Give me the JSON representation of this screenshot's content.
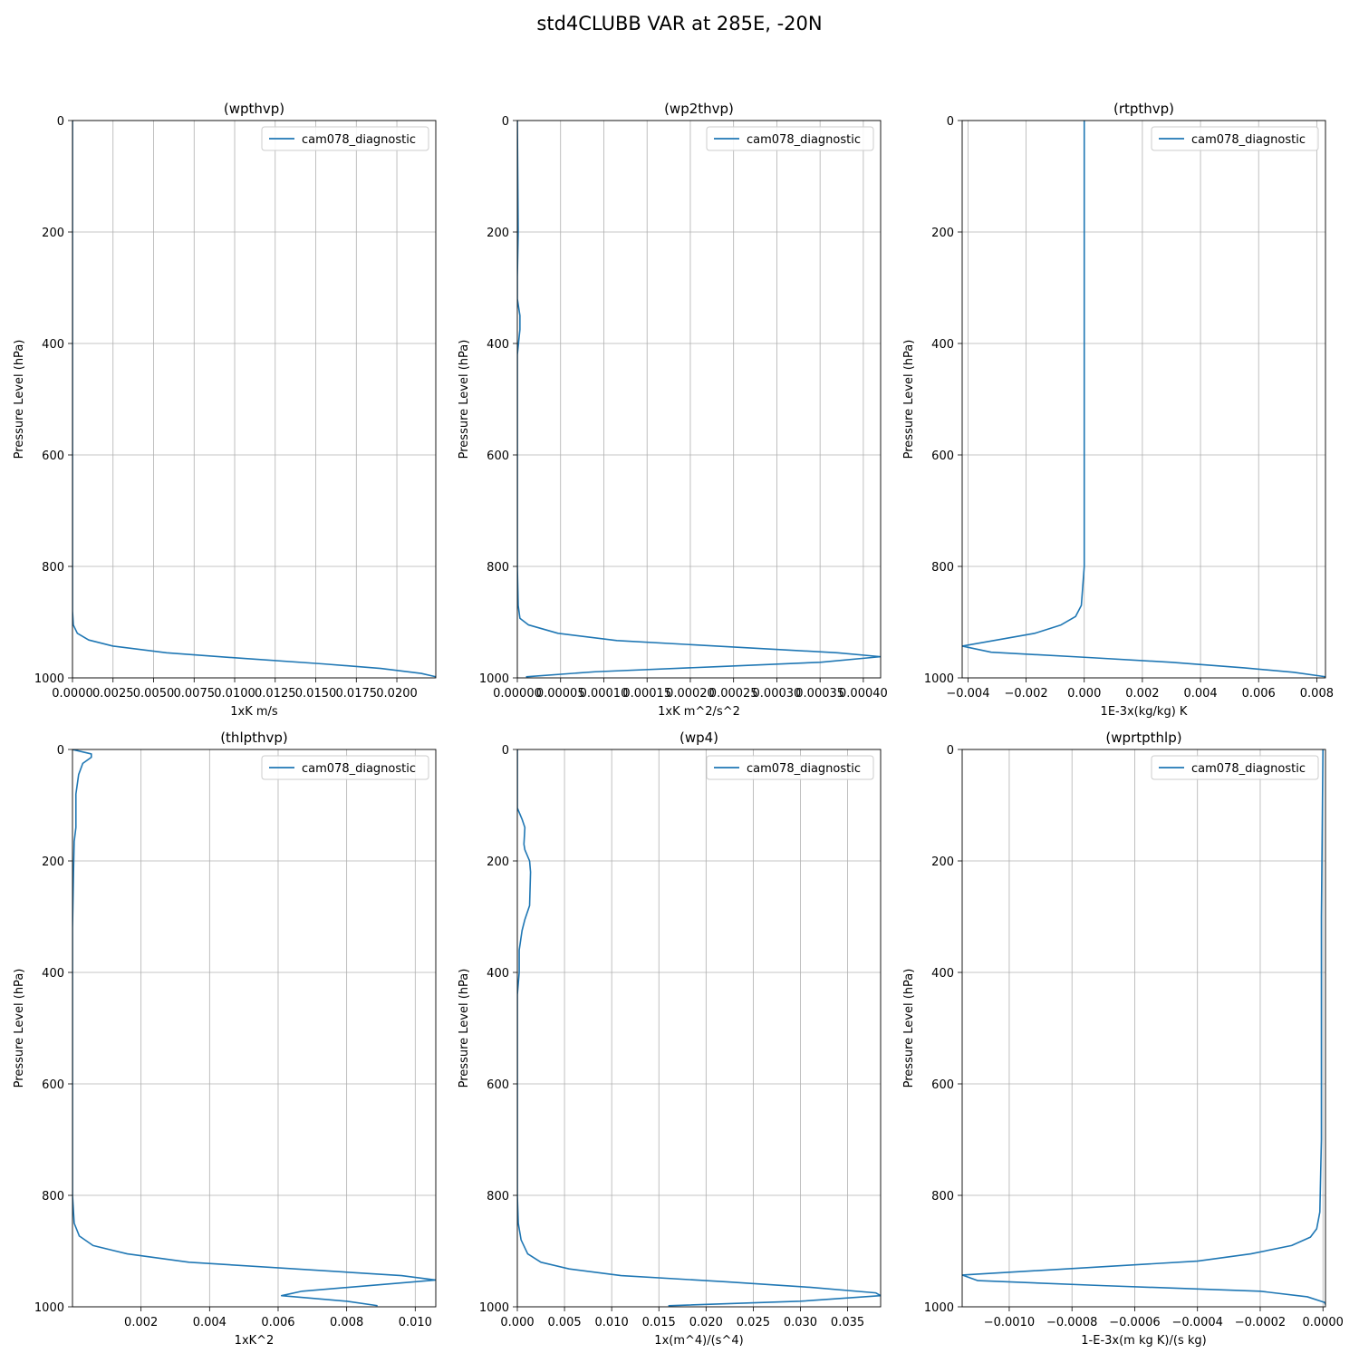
{
  "suptitle": "std4CLUBB VAR at 285E, -20N",
  "chart_data": [
    {
      "type": "line",
      "title": "(wpthvp)",
      "xlabel": "1xK m/s",
      "ylabel": "Pressure Level (hPa)",
      "xlim": [
        0,
        0.0224
      ],
      "ylim": [
        1000,
        0
      ],
      "x_ticks": [
        "0.0000",
        "0.0025",
        "0.0050",
        "0.0075",
        "0.0100",
        "0.0125",
        "0.0150",
        "0.0175",
        "0.0200"
      ],
      "y_ticks": [
        "0",
        "200",
        "400",
        "600",
        "800",
        "1000"
      ],
      "grid": true,
      "legend_position": "top-right",
      "series": [
        {
          "name": "cam078_diagnostic",
          "color": "#1f77b4",
          "points": [
            [
              0.0,
              0
            ],
            [
              0.0,
              200
            ],
            [
              0.0,
              400
            ],
            [
              0.0,
              600
            ],
            [
              0.0,
              800
            ],
            [
              0.0,
              880
            ],
            [
              5e-05,
              905
            ],
            [
              0.0003,
              920
            ],
            [
              0.001,
              932
            ],
            [
              0.0025,
              943
            ],
            [
              0.0058,
              955
            ],
            [
              0.0105,
              965
            ],
            [
              0.0155,
              975
            ],
            [
              0.019,
              983
            ],
            [
              0.0215,
              992
            ],
            [
              0.0224,
              998
            ]
          ]
        }
      ]
    },
    {
      "type": "line",
      "title": "(wp2thvp)",
      "xlabel": "1xK m^2/s^2",
      "ylabel": "Pressure Level (hPa)",
      "xlim": [
        0,
        0.00042
      ],
      "ylim": [
        1000,
        0
      ],
      "x_ticks": [
        "0.00000",
        "0.00005",
        "0.00010",
        "0.00015",
        "0.00020",
        "0.00025",
        "0.00030",
        "0.00035",
        "0.00040"
      ],
      "y_ticks": [
        "0",
        "200",
        "400",
        "600",
        "800",
        "1000"
      ],
      "grid": true,
      "legend_position": "top-right",
      "series": [
        {
          "name": "cam078_diagnostic",
          "color": "#1f77b4",
          "points": [
            [
              0.0,
              0
            ],
            [
              1e-06,
              200
            ],
            [
              0.0,
              280
            ],
            [
              0.0,
              320
            ],
            [
              3e-06,
              350
            ],
            [
              3e-06,
              375
            ],
            [
              0.0,
              420
            ],
            [
              0.0,
              600
            ],
            [
              0.0,
              800
            ],
            [
              1e-06,
              870
            ],
            [
              3e-06,
              893
            ],
            [
              1.3e-05,
              905
            ],
            [
              4.7e-05,
              920
            ],
            [
              0.000115,
              933
            ],
            [
              0.00037,
              955
            ],
            [
              0.00042,
              962
            ],
            [
              0.00035,
              972
            ],
            [
              0.00023,
              980
            ],
            [
              9e-05,
              989
            ],
            [
              1e-05,
              998
            ]
          ]
        }
      ]
    },
    {
      "type": "line",
      "title": "(rtpthvp)",
      "xlabel": "1E-3x(kg/kg) K",
      "ylabel": "Pressure Level (hPa)",
      "xlim": [
        -0.0042,
        0.0083
      ],
      "ylim": [
        1000,
        0
      ],
      "x_ticks": [
        "−0.004",
        "−0.002",
        "0.000",
        "0.002",
        "0.004",
        "0.006",
        "0.008"
      ],
      "y_ticks": [
        "0",
        "200",
        "400",
        "600",
        "800",
        "1000"
      ],
      "grid": true,
      "legend_position": "top-right",
      "series": [
        {
          "name": "cam078_diagnostic",
          "color": "#1f77b4",
          "points": [
            [
              0.0,
              0
            ],
            [
              0.0,
              200
            ],
            [
              0.0,
              400
            ],
            [
              0.0,
              600
            ],
            [
              0.0,
              800
            ],
            [
              -0.0001,
              870
            ],
            [
              -0.0003,
              890
            ],
            [
              -0.0008,
              905
            ],
            [
              -0.0017,
              920
            ],
            [
              -0.0042,
              943
            ],
            [
              -0.0032,
              954
            ],
            [
              0.0,
              963
            ],
            [
              0.003,
              972
            ],
            [
              0.0055,
              982
            ],
            [
              0.0072,
              990
            ],
            [
              0.0083,
              998
            ]
          ]
        }
      ]
    },
    {
      "type": "line",
      "title": "(thlpthvp)",
      "xlabel": "1xK^2",
      "ylabel": "Pressure Level (hPa)",
      "xlim": [
        0,
        0.0106
      ],
      "ylim": [
        1000,
        0
      ],
      "x_ticks": [
        "0.002",
        "0.004",
        "0.006",
        "0.008",
        "0.010"
      ],
      "y_ticks": [
        "0",
        "200",
        "400",
        "600",
        "800",
        "1000"
      ],
      "grid": true,
      "legend_position": "top-right",
      "series": [
        {
          "name": "cam078_diagnostic",
          "color": "#1f77b4",
          "points": [
            [
              0.0,
              0
            ],
            [
              0.00055,
              8
            ],
            [
              0.00055,
              14
            ],
            [
              0.0003,
              25
            ],
            [
              0.00018,
              45
            ],
            [
              0.0001,
              80
            ],
            [
              0.0001,
              120
            ],
            [
              0.0001,
              140
            ],
            [
              5e-05,
              165
            ],
            [
              3e-05,
              220
            ],
            [
              0.0,
              320
            ],
            [
              0.0,
              400
            ],
            [
              0.0,
              600
            ],
            [
              0.0,
              800
            ],
            [
              5e-05,
              850
            ],
            [
              0.0002,
              873
            ],
            [
              0.0006,
              890
            ],
            [
              0.0016,
              905
            ],
            [
              0.0034,
              920
            ],
            [
              0.0096,
              944
            ],
            [
              0.0106,
              952
            ],
            [
              0.0067,
              972
            ],
            [
              0.0061,
              980
            ],
            [
              0.008,
              990
            ],
            [
              0.0089,
              998
            ]
          ]
        }
      ]
    },
    {
      "type": "line",
      "title": "(wp4)",
      "xlabel": "1x(m^4)/(s^4)",
      "ylabel": "Pressure Level (hPa)",
      "xlim": [
        0,
        0.0385
      ],
      "ylim": [
        1000,
        0
      ],
      "x_ticks": [
        "0.000",
        "0.005",
        "0.010",
        "0.015",
        "0.020",
        "0.025",
        "0.030",
        "0.035"
      ],
      "y_ticks": [
        "0",
        "200",
        "400",
        "600",
        "800",
        "1000"
      ],
      "grid": true,
      "legend_position": "top-right",
      "series": [
        {
          "name": "cam078_diagnostic",
          "color": "#1f77b4",
          "points": [
            [
              0.0,
              0
            ],
            [
              0.0,
              105
            ],
            [
              0.0005,
              125
            ],
            [
              0.0008,
              140
            ],
            [
              0.0007,
              170
            ],
            [
              0.0008,
              180
            ],
            [
              0.0013,
              200
            ],
            [
              0.0014,
              220
            ],
            [
              0.0013,
              280
            ],
            [
              0.0008,
              305
            ],
            [
              0.0005,
              325
            ],
            [
              0.0002,
              360
            ],
            [
              0.0002,
              400
            ],
            [
              0.0,
              440
            ],
            [
              0.0,
              600
            ],
            [
              0.0,
              800
            ],
            [
              0.0001,
              850
            ],
            [
              0.0004,
              880
            ],
            [
              0.0011,
              905
            ],
            [
              0.0025,
              920
            ],
            [
              0.0055,
              932
            ],
            [
              0.011,
              944
            ],
            [
              0.022,
              955
            ],
            [
              0.031,
              965
            ],
            [
              0.038,
              975
            ],
            [
              0.0385,
              980
            ],
            [
              0.03,
              990
            ],
            [
              0.016,
              998
            ]
          ]
        }
      ]
    },
    {
      "type": "line",
      "title": "(wprtpthlp)",
      "xlabel": "1-E-3x(m kg K)/(s kg)",
      "ylabel": "Pressure Level (hPa)",
      "xlim": [
        -0.00115,
        8e-06
      ],
      "ylim": [
        1000,
        0
      ],
      "x_ticks": [
        "−0.0010",
        "−0.0008",
        "−0.0006",
        "−0.0004",
        "−0.0002",
        "0.0000"
      ],
      "y_ticks": [
        "0",
        "200",
        "400",
        "600",
        "800",
        "1000"
      ],
      "grid": true,
      "legend_position": "top-right",
      "series": [
        {
          "name": "cam078_diagnostic",
          "color": "#1f77b4",
          "points": [
            [
              0.0,
              0
            ],
            [
              -5e-06,
              300
            ],
            [
              -5e-06,
              500
            ],
            [
              -5e-06,
              700
            ],
            [
              -1e-05,
              830
            ],
            [
              -2e-05,
              860
            ],
            [
              -4e-05,
              875
            ],
            [
              -0.0001,
              890
            ],
            [
              -0.00023,
              905
            ],
            [
              -0.0004,
              918
            ],
            [
              -0.00115,
              943
            ],
            [
              -0.0011,
              953
            ],
            [
              -0.0007,
              962
            ],
            [
              -0.0004,
              968
            ],
            [
              -0.0002,
              972
            ],
            [
              -5e-05,
              982
            ],
            [
              5e-06,
              992
            ],
            [
              1e-05,
              998
            ]
          ]
        }
      ]
    }
  ]
}
